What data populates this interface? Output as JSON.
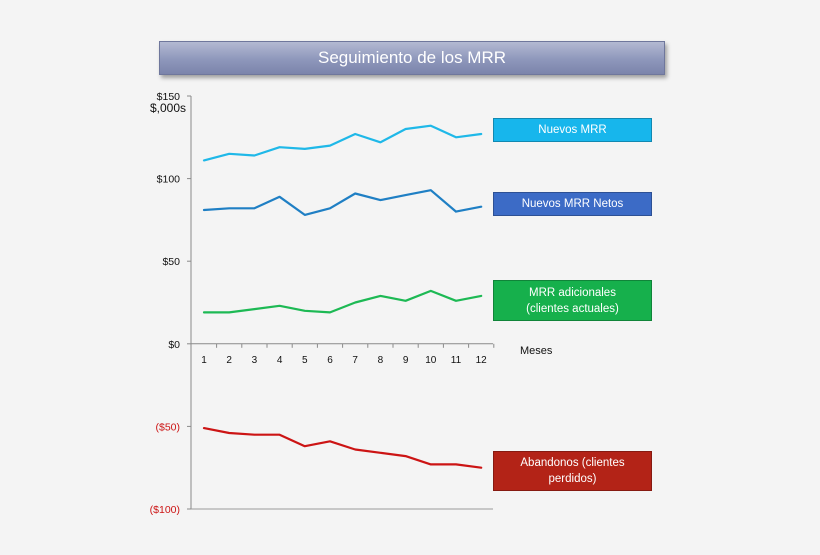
{
  "chart_data": {
    "type": "line",
    "title": "Seguimiento de los MRR",
    "ylabel": "$,000s",
    "xlabel": "Meses",
    "x": [
      1,
      2,
      3,
      4,
      5,
      6,
      7,
      8,
      9,
      10,
      11,
      12
    ],
    "ylim": [
      -100,
      150
    ],
    "yticks": [
      {
        "value": 150,
        "label": "$150",
        "negative": false
      },
      {
        "value": 100,
        "label": "$100",
        "negative": false
      },
      {
        "value": 50,
        "label": "$50",
        "negative": false
      },
      {
        "value": 0,
        "label": "$0",
        "negative": false
      },
      {
        "value": -50,
        "label": "($50)",
        "negative": true
      },
      {
        "value": -100,
        "label": "($100)",
        "negative": true
      }
    ],
    "grid": false,
    "series": [
      {
        "name": "Nuevos MRR",
        "color": "#1fb8e8",
        "values": [
          111,
          115,
          114,
          119,
          118,
          120,
          127,
          122,
          130,
          132,
          125,
          127
        ]
      },
      {
        "name": "Nuevos MRR Netos",
        "color": "#1f7fc4",
        "values": [
          81,
          82,
          82,
          89,
          78,
          82,
          91,
          87,
          90,
          93,
          80,
          83
        ]
      },
      {
        "name": "MRR adicionales (clientes actuales)",
        "color": "#1db954",
        "values": [
          19,
          19,
          21,
          23,
          20,
          19,
          25,
          29,
          26,
          32,
          26,
          29
        ]
      },
      {
        "name": "Abandonos (clientes perdidos)",
        "color": "#cc1414",
        "values": [
          -51,
          -54,
          -55,
          -55,
          -62,
          -59,
          -64,
          -66,
          -68,
          -73,
          -73,
          -75
        ]
      }
    ],
    "negative_tick_color": "#cc1414"
  },
  "legend": [
    {
      "label": "Nuevos MRR",
      "bg": "#17b6ec"
    },
    {
      "label": "Nuevos MRR Netos",
      "bg": "#3c6bc6"
    },
    {
      "label": "MRR adicionales\n(clientes actuales)",
      "bg": "#16b04c"
    },
    {
      "label": "Abandonos (clientes\nperdidos)",
      "bg": "#b32317"
    }
  ]
}
